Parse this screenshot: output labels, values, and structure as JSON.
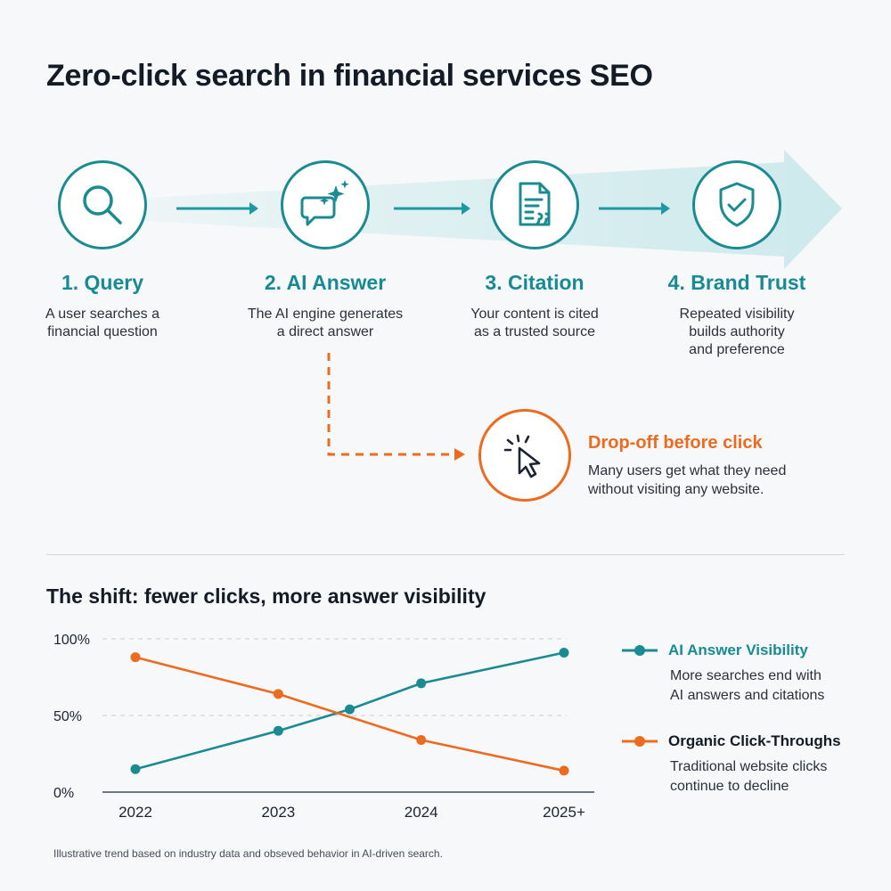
{
  "title": "Zero-click search in financial services SEO",
  "colors": {
    "teal": "#1b8b92",
    "teal_label": "#178a94",
    "orange": "#ec6b1e",
    "band": "#d8eef0"
  },
  "steps": [
    {
      "label": "1. Query",
      "desc_line1": "A user searches a",
      "desc_line2": "financial question",
      "desc_line3": "",
      "icon": "search-icon"
    },
    {
      "label": "2. AI Answer",
      "desc_line1": "The AI engine generates",
      "desc_line2": "a direct answer",
      "desc_line3": "",
      "icon": "ai-chat-sparkle-icon"
    },
    {
      "label": "3. Citation",
      "desc_line1": "Your content is cited",
      "desc_line2": "as a trusted source",
      "desc_line3": "",
      "icon": "document-quote-icon"
    },
    {
      "label": "4. Brand Trust",
      "desc_line1": "Repeated visibility",
      "desc_line2": "builds authority",
      "desc_line3": "and preference",
      "icon": "shield-check-icon"
    }
  ],
  "dropoff": {
    "title": "Drop-off before click",
    "desc_line1": "Many users get what they need",
    "desc_line2": "without visiting any website.",
    "icon": "cursor-click-icon"
  },
  "chart_section_title": "The shift: fewer clicks, more answer visibility",
  "chart_data": {
    "type": "line",
    "categories": [
      "2022",
      "2023",
      "2024",
      "2025+"
    ],
    "y_ticks": [
      "100%",
      "50%",
      "0%"
    ],
    "ylim": [
      0,
      100
    ],
    "grid": true,
    "legend_position": "right",
    "series": [
      {
        "name": "AI Answer Visibility",
        "color": "#1b8b92",
        "points": [
          [
            2022,
            15
          ],
          [
            2023,
            40
          ],
          [
            2023.5,
            54
          ],
          [
            2024,
            71
          ],
          [
            2025,
            91
          ]
        ]
      },
      {
        "name": "Organic Click-Throughs",
        "color": "#ec6b1e",
        "points": [
          [
            2022,
            88
          ],
          [
            2023,
            64
          ],
          [
            2024,
            34
          ],
          [
            2025,
            14
          ]
        ]
      }
    ]
  },
  "legend": [
    {
      "name": "AI Answer Visibility",
      "desc_line1": "More searches end with",
      "desc_line2": "AI answers and citations"
    },
    {
      "name": "Organic Click-Throughs",
      "desc_line1": "Traditional website clicks",
      "desc_line2": "continue to decline"
    }
  ],
  "footnote": "Illustrative trend based on industry data and obseved behavior in  AI-driven search."
}
